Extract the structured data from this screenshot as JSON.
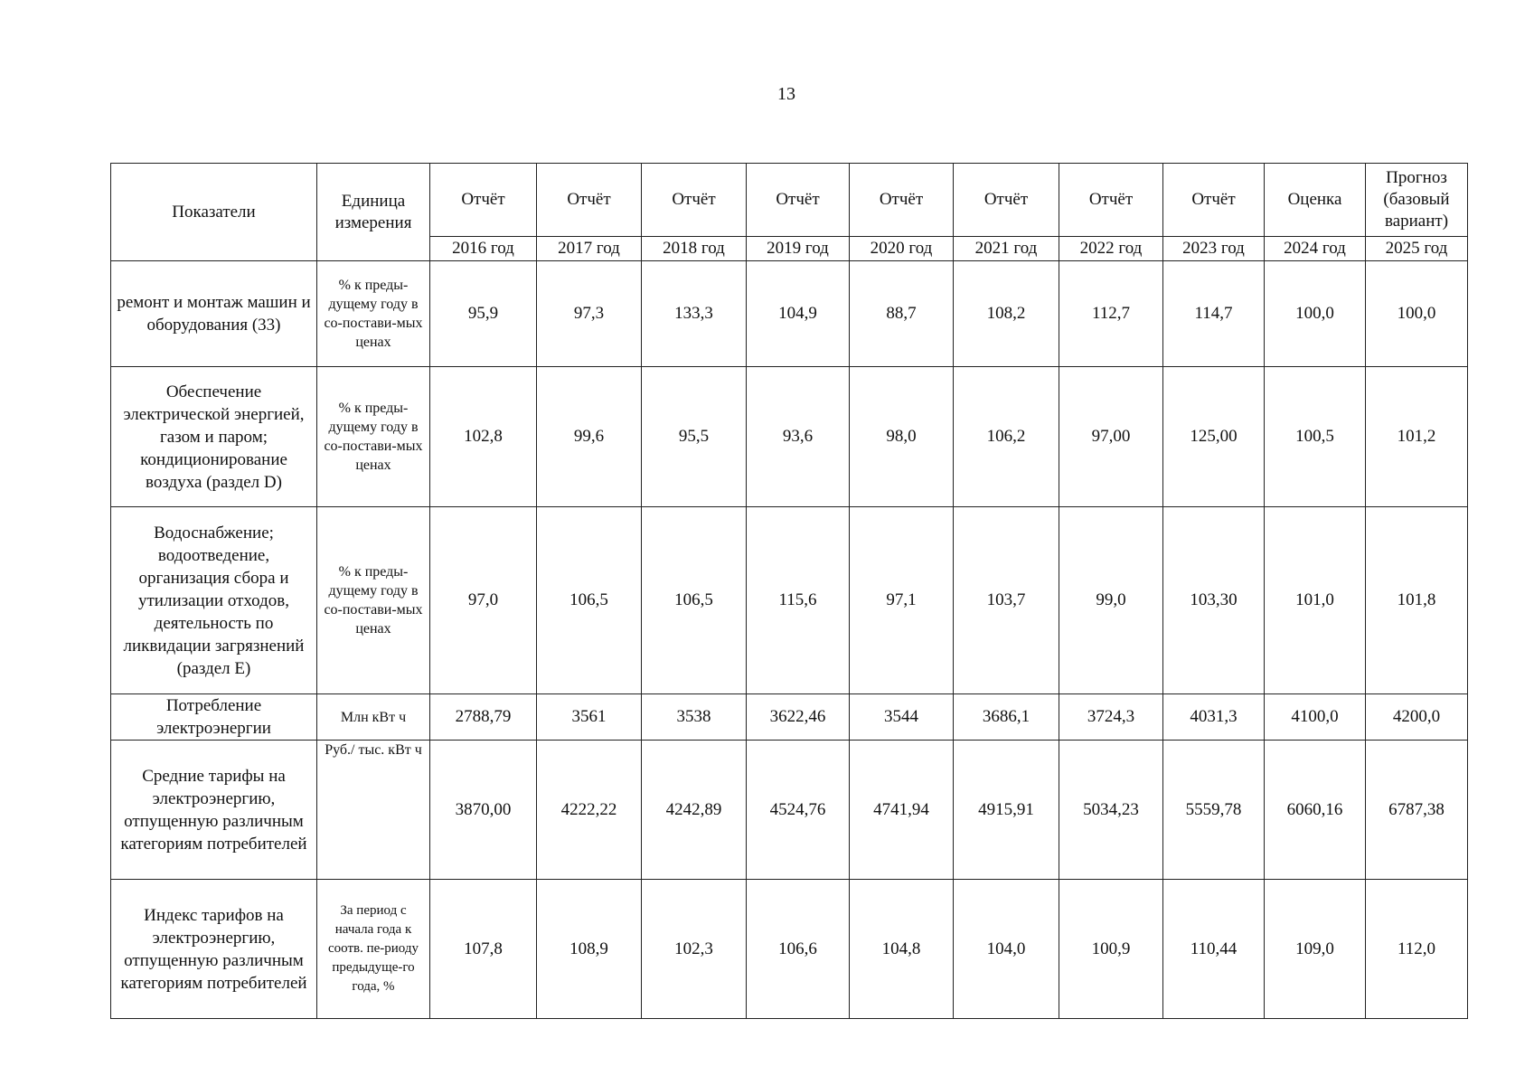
{
  "page_number": "13",
  "table": {
    "header": {
      "indicator": "Показатели",
      "unit": "Единица измерения",
      "columns": [
        {
          "type": "Отчёт",
          "year": "2016 год"
        },
        {
          "type": "Отчёт",
          "year": "2017 год"
        },
        {
          "type": "Отчёт",
          "year": "2018 год"
        },
        {
          "type": "Отчёт",
          "year": "2019 год"
        },
        {
          "type": "Отчёт",
          "year": "2020 год"
        },
        {
          "type": "Отчёт",
          "year": "2021 год"
        },
        {
          "type": "Отчёт",
          "year": "2022 год"
        },
        {
          "type": "Отчёт",
          "year": "2023 год"
        },
        {
          "type": "Оценка",
          "year": "2024 год"
        },
        {
          "type": "Прогноз (базовый вариант)",
          "year": "2025 год"
        }
      ]
    },
    "rows": [
      {
        "indicator": "ремонт и монтаж машин и оборудования (33)",
        "unit": "% к преды-дущему году в со-постави-мых ценах",
        "values": [
          "95,9",
          "97,3",
          "133,3",
          "104,9",
          "88,7",
          "108,2",
          "112,7",
          "114,7",
          "100,0",
          "100,0"
        ]
      },
      {
        "indicator": "Обеспечение электрической энергией, газом и паром; кондиционирование воздуха (раздел D)",
        "unit": "% к преды-дущему году в со-постави-мых ценах",
        "values": [
          "102,8",
          "99,6",
          "95,5",
          "93,6",
          "98,0",
          "106,2",
          "97,00",
          "125,00",
          "100,5",
          "101,2"
        ]
      },
      {
        "indicator": "Водоснабжение; водоотведение, организация сбора и утилизации отходов, деятельность по ликвидации загрязнений (раздел E)",
        "unit": "% к преды-дущему году в со-постави-мых ценах",
        "values": [
          "97,0",
          "106,5",
          "106,5",
          "115,6",
          "97,1",
          "103,7",
          "99,0",
          "103,30",
          "101,0",
          "101,8"
        ]
      },
      {
        "indicator": "Потребление электроэнергии",
        "unit": "Млн кВт ч",
        "values": [
          "2788,79",
          "3561",
          "3538",
          "3622,46",
          "3544",
          "3686,1",
          "3724,3",
          "4031,3",
          "4100,0",
          "4200,0"
        ]
      },
      {
        "indicator": "Средние тарифы на электроэнергию, отпущенную различным категориям потребителей",
        "unit": "Руб./ тыс. кВт ч",
        "values": [
          "3870,00",
          "4222,22",
          "4242,89",
          "4524,76",
          "4741,94",
          "4915,91",
          "5034,23",
          "5559,78",
          "6060,16",
          "6787,38"
        ]
      },
      {
        "indicator": "Индекс тарифов на электроэнергию, отпущенную различным категориям потребителей",
        "unit": "За период с начала года к соотв. пе-риоду предыдуще-го года, %",
        "values": [
          "107,8",
          "108,9",
          "102,3",
          "106,6",
          "104,8",
          "104,0",
          "100,9",
          "110,44",
          "109,0",
          "112,0"
        ]
      }
    ]
  }
}
